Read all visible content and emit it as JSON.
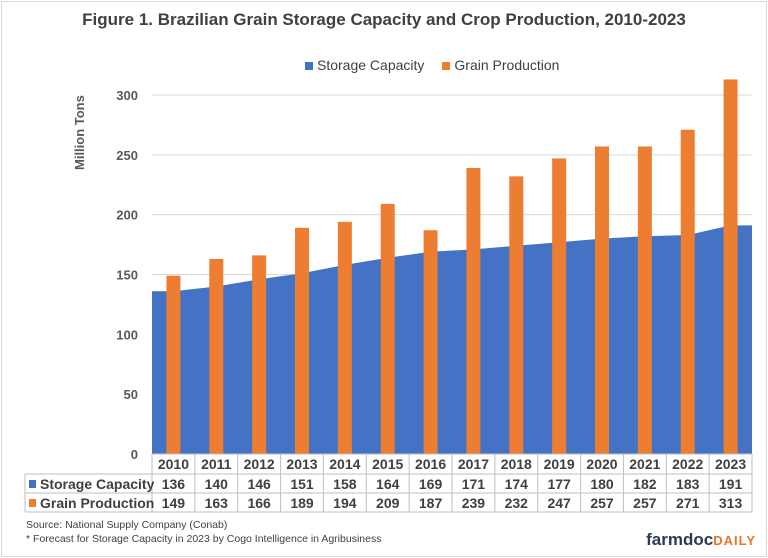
{
  "chart_data": {
    "type": "bar",
    "title": "Figure 1. Brazilian Grain Storage Capacity and Crop Production, 2010-2023",
    "ylabel": "Million Tons",
    "xlabel": "",
    "ylim": [
      0,
      300
    ],
    "yticks": [
      0,
      50,
      100,
      150,
      200,
      250,
      300
    ],
    "grid": true,
    "legend": "top",
    "categories": [
      "2010",
      "2011",
      "2012",
      "2013",
      "2014",
      "2015",
      "2016",
      "2017",
      "2018",
      "2019",
      "2020",
      "2021",
      "2022",
      "2023"
    ],
    "series": [
      {
        "name": "Storage Capacity",
        "type": "area",
        "color": "#4472c4",
        "values": [
          136,
          140,
          146,
          151,
          158,
          164,
          169,
          171,
          174,
          177,
          180,
          182,
          183,
          191
        ]
      },
      {
        "name": "Grain Production",
        "type": "bar",
        "color": "#ed7d31",
        "values": [
          149,
          163,
          166,
          189,
          194,
          209,
          187,
          239,
          232,
          247,
          257,
          257,
          271,
          313
        ]
      }
    ],
    "data_table": true
  },
  "footer": {
    "source": "Source: National  Supply Company (Conab)",
    "note": "* Forecast for  Storage Capacity in 2023 by Cogo Intelligence in Agribusiness",
    "logo_main": "farmdoc",
    "logo_accent": "DAILY"
  }
}
